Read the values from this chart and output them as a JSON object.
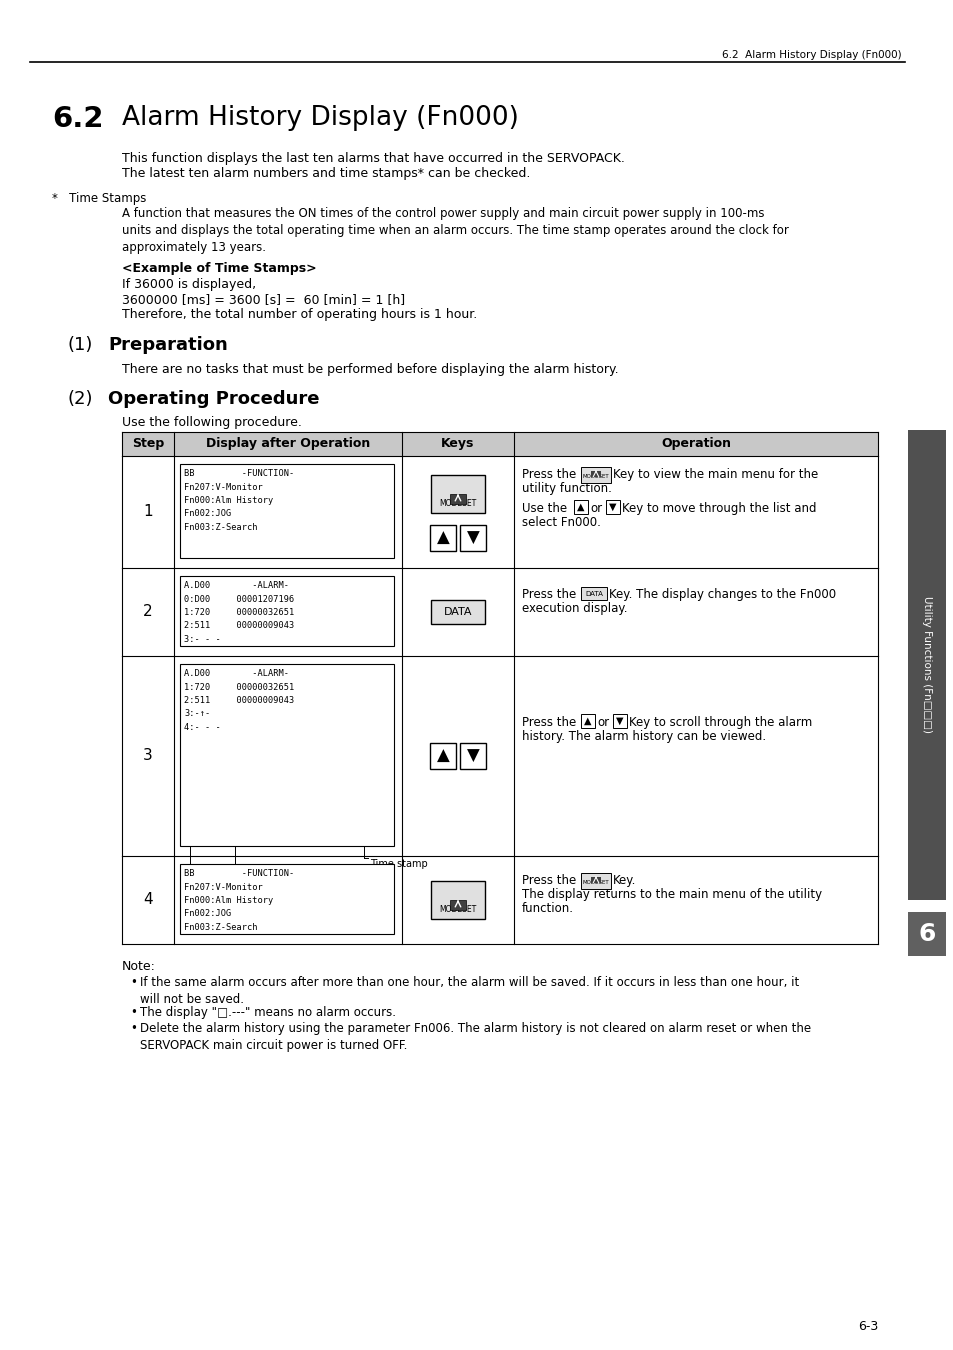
{
  "page_header": "6.2  Alarm History Display (Fn000)",
  "section_num": "6.2",
  "section_title": "Alarm History Display (Fn000)",
  "intro_text": [
    "This function displays the last ten alarms that have occurred in the SERVOPACK.",
    "The latest ten alarm numbers and time stamps* can be checked."
  ],
  "footnote_marker": "*   Time Stamps",
  "footnote_body": "A function that measures the ON times of the control power supply and main circuit power supply in 100-ms\nunits and displays the total operating time when an alarm occurs. The time stamp operates around the clock for\napproximately 13 years.",
  "example_header": "<Example of Time Stamps>",
  "example_lines": [
    "If 36000 is displayed,",
    "3600000 [ms] = 3600 [s] =  60 [min] = 1 [h]",
    "Therefore, the total number of operating hours is 1 hour."
  ],
  "sub1_num": "(1)",
  "sub1_title": "Preparation",
  "sub1_body": "There are no tasks that must be performed before displaying the alarm history.",
  "sub2_num": "(2)",
  "sub2_title": "Operating Procedure",
  "sub2_intro": "Use the following procedure.",
  "table_headers": [
    "Step",
    "Display after Operation",
    "Keys",
    "Operation"
  ],
  "row1_display": "BB         -FUNCTION-\nFn207:V-Monitor\nFn000:Alm History\nFn002:JOG\nFn003:Z-Search",
  "row2_display": "A.D00        -ALARM-\n0:D00     00001207196\n1:720     00000032651\n2:511     00000009043\n3:- - -",
  "row3_display": "A.D00        -ALARM-\n1:720     00000032651\n2:511     00000009043\n3:-↑-\n4:- - -",
  "row4_display": "BB         -FUNCTION-\nFn207:V-Monitor\nFn000:Alm History\nFn002:JOG\nFn003:Z-Search",
  "note_header": "Note:",
  "note_bullet1": "If the same alarm occurs after more than one hour, the alarm will be saved. If it occurs in less than one hour, it\nwill not be saved.",
  "note_bullet2": "The display \"□.---\" means no alarm occurs.",
  "note_bullet3": "Delete the alarm history using the parameter Fn006. The alarm history is not cleared on alarm reset or when the\nSERVOPACK main circuit power is turned OFF.",
  "sidebar_text": "Utility Functions (Fn□□□)",
  "chapter_num": "6",
  "page_num": "6-3",
  "bg_color": "#ffffff",
  "table_header_bg": "#c8c8c8",
  "sidebar_bg": "#505050",
  "chapter_bg": "#606060"
}
